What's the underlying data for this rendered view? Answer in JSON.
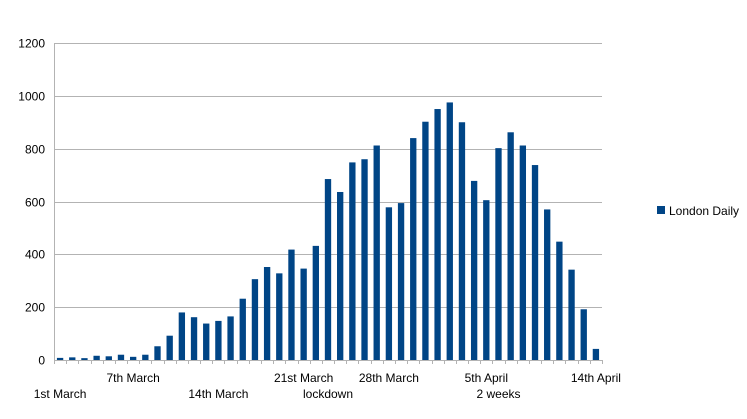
{
  "chart_data": {
    "type": "bar",
    "series": [
      {
        "name": "London Daily",
        "color": "#004586",
        "values": [
          8,
          10,
          7,
          16,
          14,
          20,
          12,
          20,
          52,
          92,
          180,
          162,
          138,
          148,
          165,
          232,
          306,
          352,
          328,
          418,
          346,
          432,
          685,
          636,
          748,
          760,
          812,
          578,
          594,
          840,
          902,
          950,
          975,
          900,
          678,
          605,
          802,
          862,
          812,
          738,
          570,
          448,
          342,
          192,
          42
        ]
      }
    ],
    "x_labels": [
      {
        "index": 0,
        "row": 1,
        "text": "1st March"
      },
      {
        "index": 6,
        "row": 0,
        "text": "7th March"
      },
      {
        "index": 13,
        "row": 1,
        "text": "14th March"
      },
      {
        "index": 20,
        "row": 0,
        "text": "21st March"
      },
      {
        "index": 22,
        "row": 1,
        "text": "lockdown"
      },
      {
        "index": 27,
        "row": 0,
        "text": "28th March"
      },
      {
        "index": 35,
        "row": 0,
        "text": "5th April"
      },
      {
        "index": 36,
        "row": 1,
        "text": "2 weeks"
      },
      {
        "index": 44,
        "row": 0,
        "text": "14th April"
      }
    ],
    "ylim": [
      0,
      1200
    ],
    "yticks": [
      0,
      200,
      400,
      600,
      800,
      1000,
      1200
    ],
    "grid": true,
    "legend_position": "right"
  }
}
